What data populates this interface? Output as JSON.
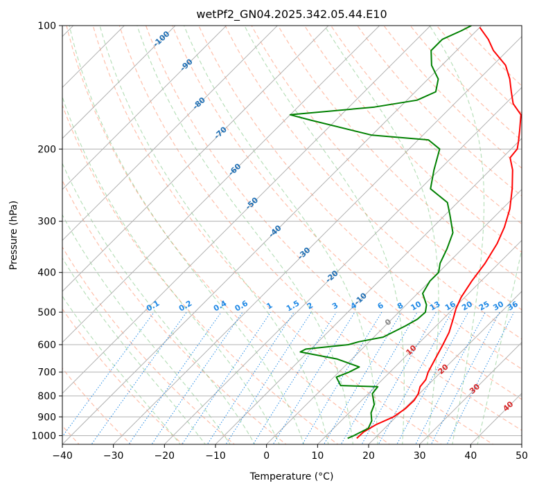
{
  "chart_data": {
    "type": "line",
    "subtype": "skew-t log-p diagram",
    "title": "wetPf2_GN04.2025.342.05.44.E10",
    "xlabel": "Temperature (°C)",
    "ylabel": "Pressure (hPa)",
    "xlim": [
      -40,
      50
    ],
    "ylim": [
      1050,
      100
    ],
    "x_ticks": [
      -40,
      -30,
      -20,
      -10,
      0,
      10,
      20,
      30,
      40,
      50
    ],
    "y_ticks": [
      1000,
      900,
      800,
      700,
      600,
      500,
      400,
      300,
      200,
      100
    ],
    "x_tick_labels": [
      "−40",
      "−30",
      "−20",
      "−10",
      "0",
      "10",
      "20",
      "30",
      "40",
      "50"
    ],
    "y_tick_labels": [
      "1000",
      "900",
      "800",
      "700",
      "600",
      "500",
      "400",
      "300",
      "200",
      "100"
    ],
    "isotherms": [
      -120,
      -110,
      -100,
      -90,
      -80,
      -70,
      -60,
      -50,
      -40,
      -30,
      -20,
      -10,
      0,
      10,
      20,
      30,
      40,
      50
    ],
    "isotherm_labels": [
      {
        "t": -100,
        "text": "-100",
        "p": 108,
        "color": "#1f6fb4"
      },
      {
        "t": -90,
        "text": "-90",
        "p": 125,
        "color": "#1f6fb4"
      },
      {
        "t": -80,
        "text": "-80",
        "p": 155,
        "color": "#1f6fb4"
      },
      {
        "t": -70,
        "text": "-70",
        "p": 183,
        "color": "#1f6fb4"
      },
      {
        "t": -60,
        "text": "-60",
        "p": 225,
        "color": "#1f6fb4"
      },
      {
        "t": -50,
        "text": "-50",
        "p": 272,
        "color": "#1f6fb4"
      },
      {
        "t": -40,
        "text": "-40",
        "p": 318,
        "color": "#1f6fb4"
      },
      {
        "t": -30,
        "text": "-30",
        "p": 360,
        "color": "#1f6fb4"
      },
      {
        "t": -20,
        "text": "-20",
        "p": 410,
        "color": "#1f6fb4"
      },
      {
        "t": -10,
        "text": "-10",
        "p": 465,
        "color": "#1f6fb4"
      },
      {
        "t": 0,
        "text": "0",
        "p": 530,
        "color": "#888888"
      },
      {
        "t": 10,
        "text": "10",
        "p": 620,
        "color": "#d62728"
      },
      {
        "t": 20,
        "text": "20",
        "p": 690,
        "color": "#d62728"
      },
      {
        "t": 30,
        "text": "30",
        "p": 770,
        "color": "#d62728"
      },
      {
        "t": 40,
        "text": "40",
        "p": 850,
        "color": "#d62728"
      }
    ],
    "dry_adiabats_theta_c": [
      -40,
      -30,
      -20,
      -10,
      0,
      10,
      20,
      30,
      40,
      50,
      60,
      70,
      80,
      90,
      100,
      110,
      120,
      130,
      140,
      150,
      160,
      170
    ],
    "moist_adiabats_start_c": [
      -20,
      -15,
      -10,
      -5,
      0,
      5,
      10,
      15,
      20,
      25,
      30,
      35,
      40
    ],
    "mixing_ratio_lines": {
      "values": [
        0.1,
        0.2,
        0.4,
        0.6,
        1,
        1.5,
        2,
        3,
        4,
        6,
        8,
        10,
        13,
        16,
        20,
        25,
        30,
        36
      ],
      "labels": [
        "0.1",
        "0.2",
        "0.4",
        "0.6",
        "1",
        "1.5",
        "2",
        "3",
        "4",
        "6",
        "8",
        "10",
        "13",
        "16",
        "20",
        "25",
        "30",
        "36"
      ],
      "top_pressure": 500,
      "color": "#1e88e5"
    },
    "series": [
      {
        "name": "Temperature",
        "color": "#ff0000",
        "points": [
          [
            16.5,
            1015
          ],
          [
            16.6,
            980
          ],
          [
            17.6,
            940
          ],
          [
            19.5,
            900
          ],
          [
            20.2,
            860
          ],
          [
            20.3,
            820
          ],
          [
            19.8,
            790
          ],
          [
            18.8,
            760
          ],
          [
            18.5,
            730
          ],
          [
            17.5,
            700
          ],
          [
            16.3,
            650
          ],
          [
            15.0,
            600
          ],
          [
            13.8,
            560
          ],
          [
            12.0,
            520
          ],
          [
            10.5,
            490
          ],
          [
            9.3,
            460
          ],
          [
            8.2,
            420
          ],
          [
            7.3,
            380
          ],
          [
            5.8,
            340
          ],
          [
            4.0,
            310
          ],
          [
            1.5,
            280
          ],
          [
            -2.0,
            250
          ],
          [
            -5.6,
            225
          ],
          [
            -8.5,
            210
          ],
          [
            -8.8,
            200
          ],
          [
            -10.0,
            192
          ],
          [
            -12.0,
            180
          ],
          [
            -14.8,
            165
          ],
          [
            -18.5,
            155
          ],
          [
            -21.2,
            145
          ],
          [
            -24.0,
            135
          ],
          [
            -27.5,
            125
          ],
          [
            -32.8,
            115
          ],
          [
            -36.0,
            108
          ],
          [
            -40.0,
            101
          ]
        ]
      },
      {
        "name": "Dewpoint",
        "color": "#008000",
        "points": [
          [
            14.7,
            1015
          ],
          [
            15.4,
            1000
          ],
          [
            16.8,
            960
          ],
          [
            16.0,
            920
          ],
          [
            14.3,
            880
          ],
          [
            13.3,
            840
          ],
          [
            10.8,
            790
          ],
          [
            10.5,
            760
          ],
          [
            3.0,
            755
          ],
          [
            0.5,
            720
          ],
          [
            2.0,
            700
          ],
          [
            3.0,
            680
          ],
          [
            -3.0,
            650
          ],
          [
            -11.5,
            625
          ],
          [
            -11.0,
            615
          ],
          [
            -3.5,
            600
          ],
          [
            -2.0,
            590
          ],
          [
            1.8,
            575
          ],
          [
            4.0,
            540
          ],
          [
            5.0,
            520
          ],
          [
            5.2,
            500
          ],
          [
            4.0,
            480
          ],
          [
            1.0,
            450
          ],
          [
            0.0,
            420
          ],
          [
            0.0,
            400
          ],
          [
            -1.5,
            380
          ],
          [
            -3.0,
            350
          ],
          [
            -5.0,
            320
          ],
          [
            -9.0,
            290
          ],
          [
            -12.0,
            270
          ],
          [
            -18.0,
            250
          ],
          [
            -21.0,
            225
          ],
          [
            -24.0,
            200
          ],
          [
            -28.0,
            190
          ],
          [
            -40.0,
            185
          ],
          [
            -55.0,
            170
          ],
          [
            -60.0,
            165
          ],
          [
            -45.0,
            158
          ],
          [
            -38.0,
            152
          ],
          [
            -36.0,
            145
          ],
          [
            -38.0,
            135
          ],
          [
            -42.0,
            125
          ],
          [
            -45.0,
            115
          ],
          [
            -45.0,
            108
          ],
          [
            -43.0,
            103
          ],
          [
            -42.0,
            100
          ]
        ]
      }
    ]
  }
}
